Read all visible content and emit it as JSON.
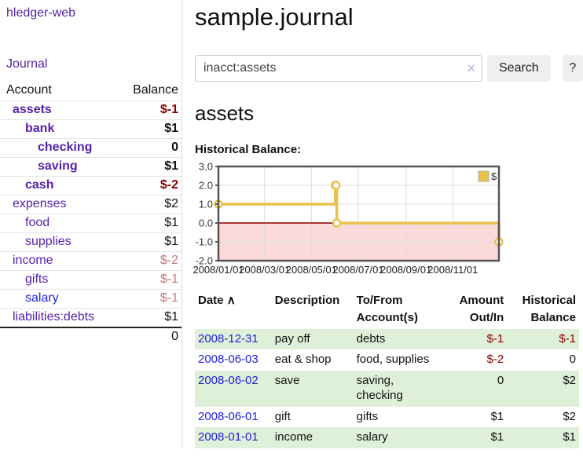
{
  "app": {
    "brand": "hledger-web"
  },
  "sidebar": {
    "journal_link": "Journal",
    "columns": {
      "account": "Account",
      "balance": "Balance"
    },
    "accounts": [
      {
        "name": "assets",
        "balance": "$-1",
        "indent": 1,
        "bold": true,
        "name_color": "purple",
        "balance_tone": "negative-strong"
      },
      {
        "name": "bank",
        "balance": "$1",
        "indent": 2,
        "bold": true,
        "name_color": "purple",
        "balance_tone": "normal"
      },
      {
        "name": "checking",
        "balance": "0",
        "indent": 3,
        "bold": true,
        "name_color": "purple",
        "balance_tone": "normal"
      },
      {
        "name": "saving",
        "balance": "$1",
        "indent": 3,
        "bold": true,
        "name_color": "purple",
        "balance_tone": "normal"
      },
      {
        "name": "cash",
        "balance": "$-2",
        "indent": 2,
        "bold": true,
        "name_color": "purple",
        "balance_tone": "negative-strong"
      },
      {
        "name": "expenses",
        "balance": "$2",
        "indent": 1,
        "bold": false,
        "name_color": "purple",
        "balance_tone": "normal"
      },
      {
        "name": "food",
        "balance": "$1",
        "indent": 2,
        "bold": false,
        "name_color": "purple",
        "balance_tone": "normal"
      },
      {
        "name": "supplies",
        "balance": "$1",
        "indent": 2,
        "bold": false,
        "name_color": "purple",
        "balance_tone": "normal"
      },
      {
        "name": "income",
        "balance": "$-2",
        "indent": 1,
        "bold": false,
        "name_color": "purple",
        "balance_tone": "negative-soft"
      },
      {
        "name": "gifts",
        "balance": "$-1",
        "indent": 2,
        "bold": false,
        "name_color": "purple",
        "balance_tone": "negative-soft"
      },
      {
        "name": "salary",
        "balance": "$-1",
        "indent": 2,
        "bold": false,
        "name_color": "blue",
        "balance_tone": "negative-soft"
      },
      {
        "name": "liabilities:debts",
        "balance": "$1",
        "indent": 1,
        "bold": false,
        "name_color": "purple",
        "balance_tone": "normal"
      }
    ],
    "total": "0"
  },
  "main": {
    "title": "sample.journal",
    "search": {
      "value": "inacct:assets",
      "clear_icon": "×",
      "button": "Search",
      "help_button": "?"
    },
    "account_heading": "assets",
    "section_label": "Historical Balance:"
  },
  "chart_data": {
    "type": "line",
    "step": true,
    "title": "Historical Balance",
    "series": [
      {
        "name": "$",
        "points": [
          [
            "2008-01-01",
            1
          ],
          [
            "2008-06-01",
            2
          ],
          [
            "2008-06-02",
            2
          ],
          [
            "2008-06-03",
            0
          ],
          [
            "2008-12-31",
            -1
          ]
        ]
      }
    ],
    "x_range": [
      "2008-01-01",
      "2008-12-31"
    ],
    "ylim": [
      -2,
      3
    ],
    "y_ticks": [
      3.0,
      2.0,
      1.0,
      0.0,
      -1.0,
      -2.0
    ],
    "y_tick_labels": [
      "3.0",
      "2.0",
      "1.0",
      "0.0",
      "-1.0",
      "-2.0"
    ],
    "x_ticks": [
      "2008-01-01",
      "2008-03-01",
      "2008-05-01",
      "2008-07-01",
      "2008-09-01",
      "2008-11-01"
    ],
    "x_tick_labels": [
      "2008/01/01",
      "2008/03/01",
      "2008/05/01",
      "2008/07/01",
      "2008/09/01",
      "2008/11/01"
    ],
    "grid": true,
    "legend": {
      "label": "$",
      "position": "top-right"
    },
    "line_color": "#e8c24a",
    "marker_fill": "#ffffff",
    "negative_region_fill": "#fbdada",
    "zero_line_color": "#8b0000",
    "frame_color": "#555555",
    "grid_color": "#dddddd"
  },
  "register": {
    "headers": {
      "date": "Date",
      "sort_icon_glyph": "∧",
      "description": "Description",
      "tofrom": "To/From\nAccount(s)",
      "amount": "Amount\nOut/In",
      "balance": "Historical\nBalance"
    },
    "rows": [
      {
        "date": "2008-12-31",
        "description": "pay off",
        "accounts": "debts",
        "amount": "$-1",
        "amount_negative": true,
        "balance": "$-1",
        "balance_negative": true,
        "highlight": true
      },
      {
        "date": "2008-06-03",
        "description": "eat & shop",
        "accounts": "food, supplies",
        "amount": "$-2",
        "amount_negative": true,
        "balance": "0",
        "balance_negative": false,
        "highlight": false
      },
      {
        "date": "2008-06-02",
        "description": "save",
        "accounts": "saving, checking",
        "amount": "0",
        "amount_negative": false,
        "balance": "$2",
        "balance_negative": false,
        "highlight": true
      },
      {
        "date": "2008-06-01",
        "description": "gift",
        "accounts": "gifts",
        "amount": "$1",
        "amount_negative": false,
        "balance": "$2",
        "balance_negative": false,
        "highlight": false
      },
      {
        "date": "2008-01-01",
        "description": "income",
        "accounts": "salary",
        "amount": "$1",
        "amount_negative": false,
        "balance": "$1",
        "balance_negative": false,
        "highlight": true
      }
    ]
  },
  "colors": {
    "link_purple": "#5522aa",
    "link_blue": "#2222dd",
    "negative_strong": "#8b0000",
    "negative_soft": "#c27878",
    "row_highlight": "#dff0d8",
    "chart_line": "#e8c24a"
  }
}
